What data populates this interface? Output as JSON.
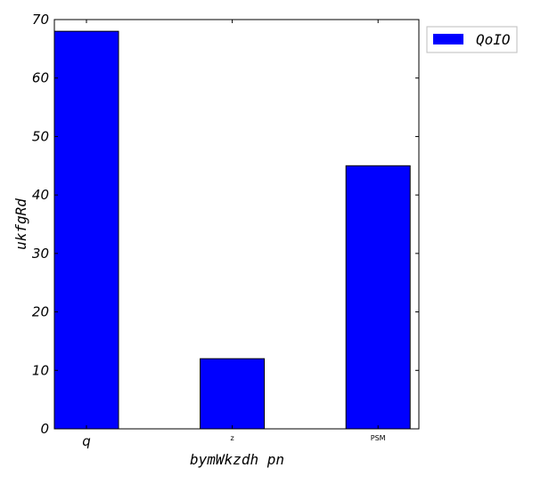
{
  "chart_data": {
    "type": "bar",
    "categories": [
      "q",
      "z",
      "PSM"
    ],
    "series": [
      {
        "name": "QoIO",
        "values": [
          68,
          12,
          45
        ],
        "color": "#0000ff"
      }
    ],
    "xlabel": "bymWkzdh pn",
    "ylabel": "ukfgRd",
    "ylim": [
      0,
      70
    ],
    "yticks": [
      0,
      10,
      20,
      30,
      40,
      50,
      60,
      70
    ],
    "grid": false,
    "legend_position": "outside-top-right"
  }
}
